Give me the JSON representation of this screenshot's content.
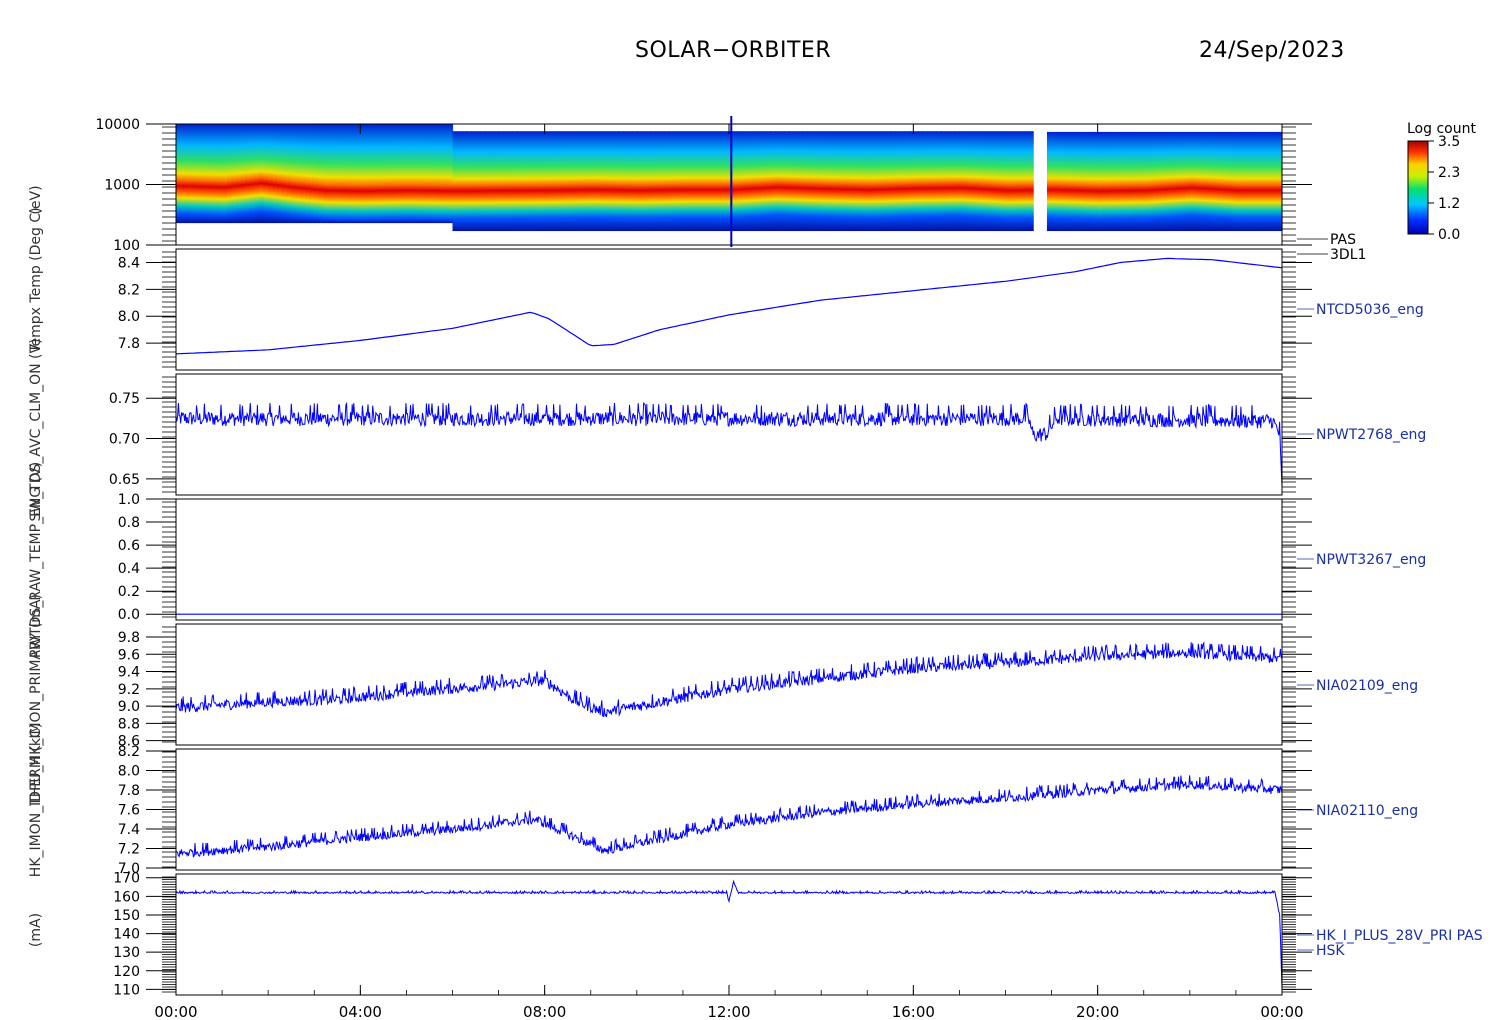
{
  "header": {
    "title": "SOLAR−ORBITER",
    "date": "24/Sep/2023"
  },
  "colorbar": {
    "title": "Log count",
    "ticks": [
      "3.5",
      "2.3",
      "1.2",
      "0.0"
    ]
  },
  "side_ylabels": [
    "(eV)",
    "Tempx Temp (Deg C)",
    "SW_TDS_AVC_CLM_ON (V)",
    "PWTDS_RAW_TEMP_ENG (V)",
    "IDPU_HK_IMON_PRIMARY (mA)",
    "HK_IMON_THERM (kC)",
    "(mA)"
  ],
  "xaxis": {
    "ticks": [
      "00:00",
      "04:00",
      "08:00",
      "12:00",
      "16:00",
      "20:00",
      "00:00"
    ],
    "range_hours": [
      0,
      24
    ]
  },
  "chart_data": [
    {
      "type": "heatmap",
      "label": [
        "PAS",
        "3DL1"
      ],
      "y_scale": "log",
      "ylim": [
        100,
        10000
      ],
      "yticks": [
        "10000",
        "1000",
        "100"
      ],
      "colorbar_range": [
        0.0,
        3.5
      ],
      "gaps_hours": [
        [
          18.55,
          18.85
        ]
      ],
      "peak_energy_ev": [
        [
          0,
          950
        ],
        [
          1,
          900
        ],
        [
          1.8,
          1050
        ],
        [
          2.5,
          900
        ],
        [
          3.2,
          800
        ],
        [
          4,
          780
        ],
        [
          5,
          800
        ],
        [
          6,
          780
        ],
        [
          7,
          790
        ],
        [
          8,
          800
        ],
        [
          9,
          820
        ],
        [
          10,
          800
        ],
        [
          11,
          820
        ],
        [
          12,
          820
        ],
        [
          13,
          900
        ],
        [
          14,
          850
        ],
        [
          15,
          820
        ],
        [
          16,
          860
        ],
        [
          17,
          880
        ],
        [
          18,
          800
        ],
        [
          19,
          820
        ],
        [
          20,
          780
        ],
        [
          21,
          800
        ],
        [
          22,
          880
        ],
        [
          23,
          800
        ],
        [
          24,
          800
        ]
      ]
    },
    {
      "type": "line",
      "label": "NTCD5036_eng",
      "ylim": [
        7.6,
        8.5
      ],
      "yticks": [
        "8.4",
        "8.2",
        "8.0",
        "7.8"
      ],
      "noise": 0.0,
      "points": [
        [
          0,
          7.72
        ],
        [
          2,
          7.75
        ],
        [
          4,
          7.82
        ],
        [
          6,
          7.91
        ],
        [
          7.7,
          8.03
        ],
        [
          8.1,
          7.98
        ],
        [
          9,
          7.78
        ],
        [
          9.5,
          7.79
        ],
        [
          10.5,
          7.9
        ],
        [
          12,
          8.01
        ],
        [
          14,
          8.12
        ],
        [
          16,
          8.19
        ],
        [
          18,
          8.26
        ],
        [
          19.5,
          8.33
        ],
        [
          20.5,
          8.4
        ],
        [
          21.5,
          8.43
        ],
        [
          22.5,
          8.42
        ],
        [
          24,
          8.36
        ]
      ]
    },
    {
      "type": "line",
      "label": "NPWT2768_eng",
      "ylim": [
        0.63,
        0.78
      ],
      "yticks": [
        "0.75",
        "0.70",
        "0.65"
      ],
      "noise": 0.012,
      "points": [
        [
          0,
          0.725
        ],
        [
          18.5,
          0.725
        ],
        [
          18.6,
          0.704
        ],
        [
          18.9,
          0.706
        ],
        [
          19.1,
          0.725
        ],
        [
          23.8,
          0.722
        ],
        [
          23.95,
          0.705
        ],
        [
          24,
          0.635
        ]
      ]
    },
    {
      "type": "line",
      "label": "NPWT3267_eng",
      "ylim": [
        -0.05,
        1.0
      ],
      "yticks": [
        "1.0",
        "0.8",
        "0.6",
        "0.4",
        "0.2",
        "0.0"
      ],
      "noise": 0.0,
      "points": [
        [
          0,
          0.0
        ],
        [
          24,
          0.0
        ]
      ]
    },
    {
      "type": "line",
      "label": "NIA02109_eng",
      "ylim": [
        8.55,
        9.95
      ],
      "yticks": [
        "9.8",
        "9.6",
        "9.4",
        "9.2",
        "9.0",
        "8.8",
        "8.6"
      ],
      "noise": 0.08,
      "points": [
        [
          0,
          8.98
        ],
        [
          2,
          9.05
        ],
        [
          3.5,
          9.08
        ],
        [
          5,
          9.16
        ],
        [
          7,
          9.25
        ],
        [
          8,
          9.3
        ],
        [
          8.7,
          9.05
        ],
        [
          9.3,
          8.93
        ],
        [
          10,
          9.0
        ],
        [
          12,
          9.2
        ],
        [
          14,
          9.32
        ],
        [
          16,
          9.44
        ],
        [
          18,
          9.5
        ],
        [
          20,
          9.58
        ],
        [
          22,
          9.62
        ],
        [
          24,
          9.55
        ]
      ]
    },
    {
      "type": "line",
      "label": "NIA02110_eng",
      "ylim": [
        6.98,
        8.22
      ],
      "yticks": [
        "8.2",
        "8.0",
        "7.8",
        "7.6",
        "7.4",
        "7.2",
        "7.0"
      ],
      "noise": 0.06,
      "points": [
        [
          0,
          7.15
        ],
        [
          2,
          7.22
        ],
        [
          4,
          7.32
        ],
        [
          6,
          7.4
        ],
        [
          7.8,
          7.5
        ],
        [
          8.5,
          7.35
        ],
        [
          9.3,
          7.18
        ],
        [
          10,
          7.25
        ],
        [
          12,
          7.45
        ],
        [
          14,
          7.57
        ],
        [
          16,
          7.66
        ],
        [
          18,
          7.72
        ],
        [
          20,
          7.8
        ],
        [
          22,
          7.86
        ],
        [
          24,
          7.8
        ]
      ]
    },
    {
      "type": "line",
      "label": [
        "HK_I_PLUS_28V_PRI PAS",
        "HSK"
      ],
      "ylim": [
        107,
        172
      ],
      "yticks": [
        "170",
        "160",
        "150",
        "140",
        "130",
        "120",
        "110"
      ],
      "noise": 0.6,
      "points": [
        [
          0,
          162
        ],
        [
          11.95,
          162
        ],
        [
          12.0,
          157
        ],
        [
          12.1,
          168
        ],
        [
          12.2,
          162
        ],
        [
          23.85,
          162
        ],
        [
          23.95,
          150
        ],
        [
          24,
          110
        ]
      ]
    }
  ]
}
